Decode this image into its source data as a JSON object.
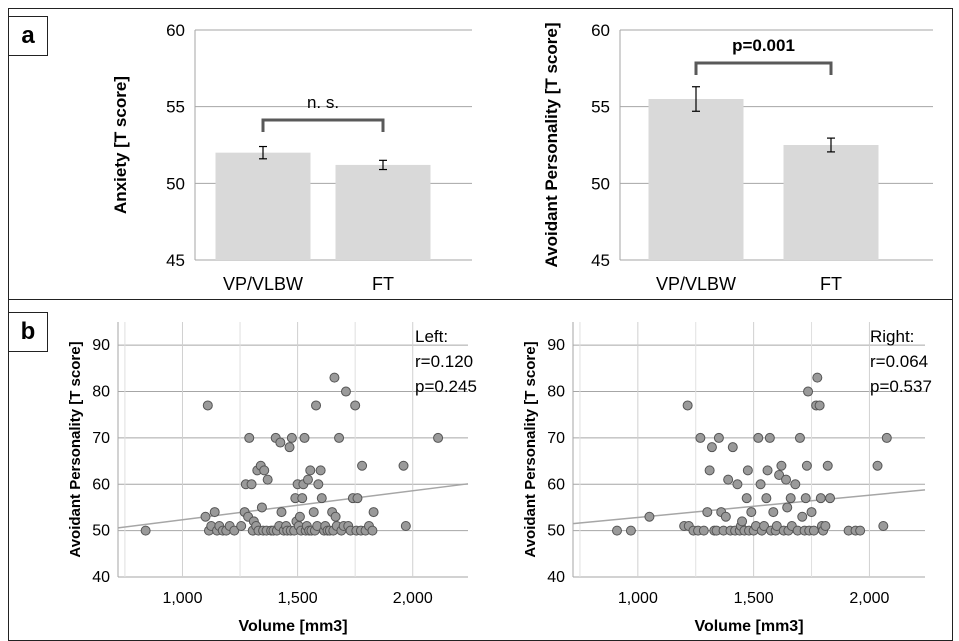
{
  "panels": {
    "a": {
      "label": "a"
    },
    "b": {
      "label": "b"
    }
  },
  "colors": {
    "bar": "#d9d9d9",
    "grid": "#a6a6a6",
    "point_fill": "#9a9a9a",
    "point_stroke": "#555555",
    "trend_line": "#a6a6a6",
    "bracket": "#595959"
  },
  "chart_data": [
    {
      "id": "anxiety-bar-chart",
      "type": "bar",
      "ylabel": "Anxiety [T score]",
      "categories": [
        "VP/VLBW",
        "FT"
      ],
      "values": [
        52.0,
        51.2
      ],
      "error": [
        0.4,
        0.3
      ],
      "ylim": [
        45,
        60
      ],
      "yticks": [
        "45",
        "50",
        "55",
        "60"
      ],
      "grid": true,
      "annotation": "n. s."
    },
    {
      "id": "avoidant-bar-chart",
      "type": "bar",
      "ylabel": "Avoidant Personality [T score]",
      "categories": [
        "VP/VLBW",
        "FT"
      ],
      "values": [
        55.5,
        52.5
      ],
      "error": [
        0.8,
        0.45
      ],
      "ylim": [
        45,
        60
      ],
      "yticks": [
        "45",
        "50",
        "55",
        "60"
      ],
      "grid": true,
      "annotation": "p=0.001"
    },
    {
      "id": "left-volume-scatter",
      "type": "scatter",
      "xlabel": "Volume [mm3]",
      "ylabel": "Avoidant Personality [T score]",
      "xlim": [
        720,
        2240
      ],
      "ylim": [
        40,
        95
      ],
      "xticks": [
        "1,000",
        "1,500",
        "2,000"
      ],
      "xtick_values": [
        1000,
        1500,
        2000
      ],
      "yticks": [
        "40",
        "50",
        "60",
        "70",
        "80",
        "90"
      ],
      "ytick_values": [
        40,
        50,
        60,
        70,
        80,
        90
      ],
      "grid": true,
      "annotation": [
        "Left:",
        "r=0.120",
        "p=0.245"
      ],
      "trend": {
        "x": [
          720,
          2240
        ],
        "y": [
          50.6,
          60.1
        ]
      },
      "points": [
        [
          840,
          50
        ],
        [
          1100,
          53
        ],
        [
          1110,
          77
        ],
        [
          1115,
          50
        ],
        [
          1125,
          51
        ],
        [
          1140,
          54
        ],
        [
          1150,
          50
        ],
        [
          1160,
          51
        ],
        [
          1175,
          50
        ],
        [
          1190,
          50
        ],
        [
          1205,
          51
        ],
        [
          1225,
          50
        ],
        [
          1255,
          51
        ],
        [
          1270,
          54
        ],
        [
          1275,
          60
        ],
        [
          1285,
          53
        ],
        [
          1290,
          70
        ],
        [
          1300,
          60
        ],
        [
          1305,
          50
        ],
        [
          1310,
          52
        ],
        [
          1320,
          51
        ],
        [
          1325,
          63
        ],
        [
          1330,
          50
        ],
        [
          1340,
          64
        ],
        [
          1345,
          55
        ],
        [
          1350,
          50
        ],
        [
          1355,
          63
        ],
        [
          1365,
          50
        ],
        [
          1370,
          61
        ],
        [
          1385,
          50
        ],
        [
          1395,
          50
        ],
        [
          1405,
          70
        ],
        [
          1410,
          50
        ],
        [
          1420,
          51
        ],
        [
          1425,
          69
        ],
        [
          1430,
          54
        ],
        [
          1440,
          50
        ],
        [
          1450,
          51
        ],
        [
          1455,
          50
        ],
        [
          1465,
          68
        ],
        [
          1470,
          50
        ],
        [
          1475,
          70
        ],
        [
          1485,
          50
        ],
        [
          1490,
          57
        ],
        [
          1495,
          52
        ],
        [
          1500,
          60
        ],
        [
          1505,
          51
        ],
        [
          1510,
          53
        ],
        [
          1515,
          50
        ],
        [
          1520,
          57
        ],
        [
          1525,
          60
        ],
        [
          1530,
          70
        ],
        [
          1535,
          50
        ],
        [
          1540,
          51
        ],
        [
          1545,
          61
        ],
        [
          1550,
          50
        ],
        [
          1555,
          63
        ],
        [
          1560,
          50
        ],
        [
          1570,
          54
        ],
        [
          1575,
          50
        ],
        [
          1580,
          77
        ],
        [
          1585,
          51
        ],
        [
          1590,
          60
        ],
        [
          1600,
          63
        ],
        [
          1605,
          57
        ],
        [
          1615,
          50
        ],
        [
          1620,
          51
        ],
        [
          1630,
          50
        ],
        [
          1640,
          50
        ],
        [
          1650,
          54
        ],
        [
          1655,
          50
        ],
        [
          1660,
          83
        ],
        [
          1665,
          53
        ],
        [
          1670,
          51
        ],
        [
          1680,
          70
        ],
        [
          1690,
          50
        ],
        [
          1700,
          51
        ],
        [
          1710,
          80
        ],
        [
          1720,
          51
        ],
        [
          1730,
          50
        ],
        [
          1740,
          57
        ],
        [
          1750,
          77
        ],
        [
          1755,
          50
        ],
        [
          1760,
          57
        ],
        [
          1775,
          50
        ],
        [
          1780,
          64
        ],
        [
          1795,
          50
        ],
        [
          1810,
          51
        ],
        [
          1825,
          50
        ],
        [
          1830,
          54
        ],
        [
          1960,
          64
        ],
        [
          1970,
          51
        ],
        [
          2110,
          70
        ]
      ]
    },
    {
      "id": "right-volume-scatter",
      "type": "scatter",
      "xlabel": "Volume [mm3]",
      "ylabel": "Avoidant Personality [T score]",
      "xlim": [
        720,
        2240
      ],
      "ylim": [
        40,
        95
      ],
      "xticks": [
        "1,000",
        "1,500",
        "2,000"
      ],
      "xtick_values": [
        1000,
        1500,
        2000
      ],
      "yticks": [
        "40",
        "50",
        "60",
        "70",
        "80",
        "90"
      ],
      "ytick_values": [
        40,
        50,
        60,
        70,
        80,
        90
      ],
      "grid": true,
      "annotation": [
        "Right:",
        "r=0.064",
        "p=0.537"
      ],
      "trend": {
        "x": [
          720,
          2240
        ],
        "y": [
          51.5,
          58.8
        ]
      },
      "points": [
        [
          910,
          50
        ],
        [
          970,
          50
        ],
        [
          1050,
          53
        ],
        [
          1200,
          51
        ],
        [
          1215,
          77
        ],
        [
          1220,
          51
        ],
        [
          1240,
          50
        ],
        [
          1260,
          50
        ],
        [
          1270,
          70
        ],
        [
          1285,
          50
        ],
        [
          1300,
          54
        ],
        [
          1310,
          63
        ],
        [
          1320,
          68
        ],
        [
          1330,
          50
        ],
        [
          1340,
          50
        ],
        [
          1350,
          70
        ],
        [
          1360,
          54
        ],
        [
          1370,
          50
        ],
        [
          1380,
          53
        ],
        [
          1390,
          61
        ],
        [
          1400,
          50
        ],
        [
          1410,
          68
        ],
        [
          1420,
          50
        ],
        [
          1430,
          60
        ],
        [
          1440,
          50
        ],
        [
          1445,
          51
        ],
        [
          1450,
          52
        ],
        [
          1460,
          50
        ],
        [
          1470,
          57
        ],
        [
          1475,
          63
        ],
        [
          1480,
          50
        ],
        [
          1490,
          54
        ],
        [
          1500,
          50
        ],
        [
          1510,
          51
        ],
        [
          1520,
          70
        ],
        [
          1530,
          60
        ],
        [
          1535,
          50
        ],
        [
          1545,
          51
        ],
        [
          1555,
          57
        ],
        [
          1560,
          63
        ],
        [
          1570,
          70
        ],
        [
          1575,
          50
        ],
        [
          1585,
          54
        ],
        [
          1595,
          50
        ],
        [
          1600,
          51
        ],
        [
          1610,
          62
        ],
        [
          1620,
          64
        ],
        [
          1630,
          50
        ],
        [
          1640,
          61
        ],
        [
          1645,
          55
        ],
        [
          1650,
          50
        ],
        [
          1660,
          57
        ],
        [
          1665,
          51
        ],
        [
          1680,
          60
        ],
        [
          1690,
          50
        ],
        [
          1700,
          70
        ],
        [
          1710,
          53
        ],
        [
          1720,
          50
        ],
        [
          1725,
          57
        ],
        [
          1730,
          64
        ],
        [
          1735,
          80
        ],
        [
          1740,
          50
        ],
        [
          1750,
          54
        ],
        [
          1760,
          50
        ],
        [
          1770,
          77
        ],
        [
          1775,
          83
        ],
        [
          1785,
          77
        ],
        [
          1790,
          57
        ],
        [
          1795,
          51
        ],
        [
          1800,
          50
        ],
        [
          1810,
          51
        ],
        [
          1820,
          64
        ],
        [
          1830,
          57
        ],
        [
          1910,
          50
        ],
        [
          1940,
          50
        ],
        [
          1960,
          50
        ],
        [
          2035,
          64
        ],
        [
          2060,
          51
        ],
        [
          2075,
          70
        ]
      ]
    }
  ]
}
